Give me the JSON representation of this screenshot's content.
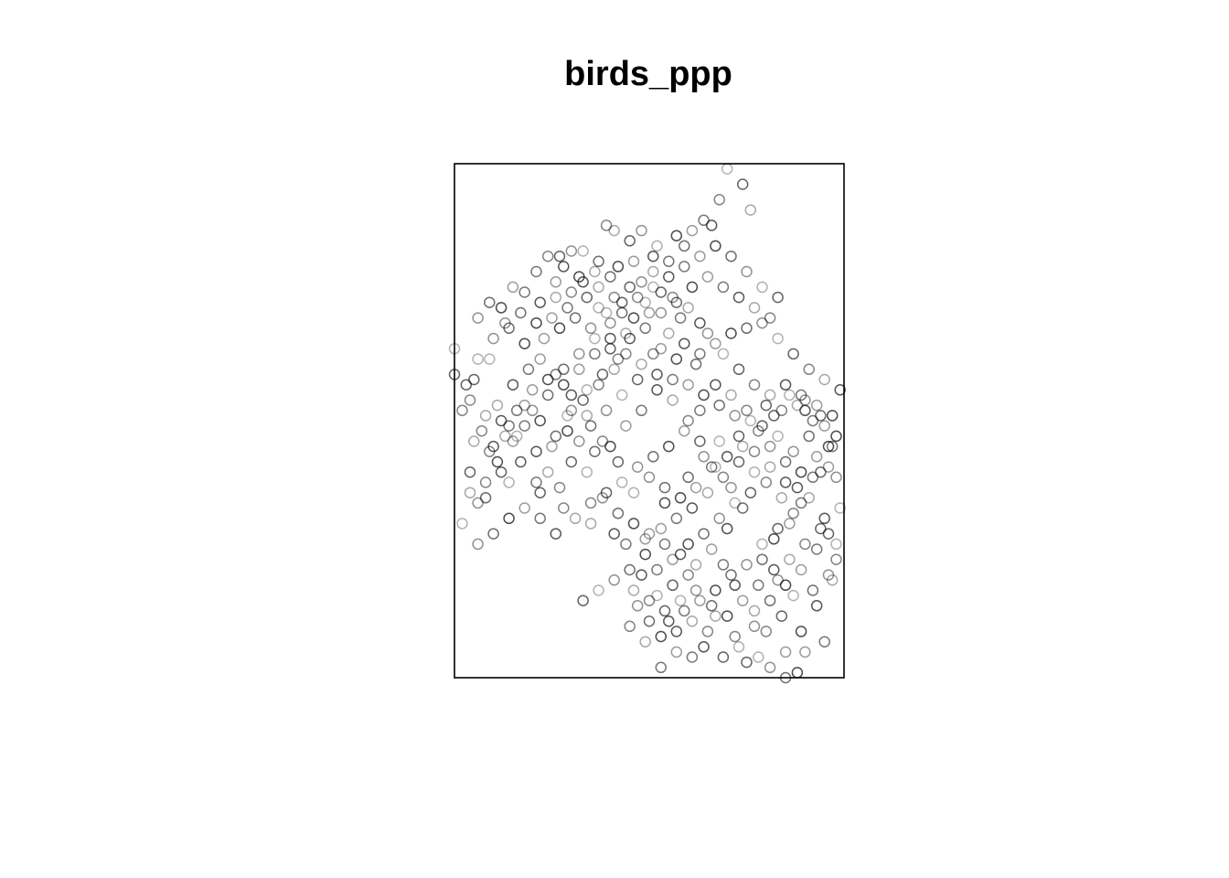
{
  "chart_data": {
    "type": "scatter",
    "title": "birds_ppp",
    "xlabel": "",
    "ylabel": "",
    "xlim": [
      0,
      100
    ],
    "ylim": [
      0,
      100
    ],
    "grid": false,
    "axes_shown": false,
    "marker": "open-circle",
    "marker_color": "#000000",
    "points": [
      [
        70,
        99
      ],
      [
        74,
        96
      ],
      [
        68,
        93
      ],
      [
        76,
        91
      ],
      [
        66,
        88
      ],
      [
        64,
        89
      ],
      [
        61,
        87
      ],
      [
        57,
        86
      ],
      [
        59,
        84
      ],
      [
        48,
        87
      ],
      [
        52,
        84
      ],
      [
        45,
        85
      ],
      [
        39,
        88
      ],
      [
        41,
        87
      ],
      [
        51,
        82
      ],
      [
        55,
        81
      ],
      [
        46,
        81
      ],
      [
        42,
        80
      ],
      [
        37,
        81
      ],
      [
        30,
        83
      ],
      [
        33,
        83
      ],
      [
        27,
        82
      ],
      [
        24,
        82
      ],
      [
        36,
        79
      ],
      [
        28,
        80
      ],
      [
        21,
        79
      ],
      [
        26,
        77
      ],
      [
        32,
        78
      ],
      [
        40,
        78
      ],
      [
        48,
        77
      ],
      [
        51,
        76
      ],
      [
        53,
        75
      ],
      [
        56,
        74
      ],
      [
        60,
        72
      ],
      [
        63,
        69
      ],
      [
        58,
        70
      ],
      [
        50,
        71
      ],
      [
        46,
        70
      ],
      [
        43,
        71
      ],
      [
        40,
        69
      ],
      [
        37,
        72
      ],
      [
        34,
        74
      ],
      [
        30,
        75
      ],
      [
        26,
        74
      ],
      [
        22,
        73
      ],
      [
        18,
        75
      ],
      [
        15,
        76
      ],
      [
        12,
        72
      ],
      [
        9,
        73
      ],
      [
        6,
        70
      ],
      [
        0,
        64
      ],
      [
        0,
        59
      ],
      [
        4,
        54
      ],
      [
        8,
        51
      ],
      [
        12,
        50
      ],
      [
        16,
        52
      ],
      [
        20,
        56
      ],
      [
        24,
        58
      ],
      [
        28,
        60
      ],
      [
        32,
        63
      ],
      [
        36,
        66
      ],
      [
        40,
        64
      ],
      [
        44,
        63
      ],
      [
        48,
        61
      ],
      [
        52,
        59
      ],
      [
        56,
        58
      ],
      [
        60,
        57
      ],
      [
        64,
        55
      ],
      [
        68,
        53
      ],
      [
        72,
        51
      ],
      [
        76,
        50
      ],
      [
        80,
        53
      ],
      [
        84,
        52
      ],
      [
        88,
        53
      ],
      [
        90,
        52
      ],
      [
        92,
        50
      ],
      [
        95,
        49
      ],
      [
        96,
        45
      ],
      [
        94,
        40
      ],
      [
        98,
        39
      ],
      [
        99,
        33
      ],
      [
        96,
        28
      ],
      [
        98,
        23
      ],
      [
        97,
        19
      ],
      [
        93,
        14
      ],
      [
        95,
        7
      ],
      [
        90,
        5
      ],
      [
        88,
        1
      ],
      [
        85,
        0
      ],
      [
        81,
        2
      ],
      [
        78,
        4
      ],
      [
        75,
        3
      ],
      [
        72,
        8
      ],
      [
        67,
        12
      ],
      [
        64,
        6
      ],
      [
        61,
        4
      ],
      [
        57,
        5
      ],
      [
        53,
        8
      ],
      [
        50,
        11
      ],
      [
        47,
        14
      ],
      [
        52,
        16
      ],
      [
        56,
        18
      ],
      [
        60,
        20
      ],
      [
        62,
        22
      ],
      [
        58,
        24
      ],
      [
        54,
        26
      ],
      [
        50,
        28
      ],
      [
        46,
        30
      ],
      [
        42,
        32
      ],
      [
        38,
        35
      ],
      [
        34,
        40
      ],
      [
        30,
        42
      ],
      [
        27,
        37
      ],
      [
        24,
        40
      ],
      [
        21,
        44
      ],
      [
        18,
        49
      ],
      [
        15,
        46
      ],
      [
        11,
        42
      ],
      [
        8,
        35
      ],
      [
        6,
        34
      ],
      [
        14,
        38
      ],
      [
        22,
        36
      ],
      [
        28,
        33
      ],
      [
        35,
        30
      ],
      [
        41,
        28
      ],
      [
        44,
        26
      ],
      [
        49,
        27
      ],
      [
        54,
        34
      ],
      [
        60,
        39
      ],
      [
        64,
        43
      ],
      [
        68,
        46
      ],
      [
        73,
        47
      ],
      [
        77,
        44
      ],
      [
        81,
        41
      ],
      [
        85,
        38
      ],
      [
        89,
        34
      ],
      [
        86,
        30
      ],
      [
        82,
        27
      ],
      [
        79,
        23
      ],
      [
        83,
        19
      ],
      [
        87,
        16
      ],
      [
        84,
        12
      ],
      [
        80,
        9
      ],
      [
        77,
        13
      ],
      [
        72,
        18
      ],
      [
        69,
        22
      ],
      [
        66,
        25
      ],
      [
        70,
        29
      ],
      [
        74,
        33
      ],
      [
        71,
        37
      ],
      [
        67,
        41
      ],
      [
        63,
        46
      ],
      [
        60,
        50
      ],
      [
        56,
        54
      ],
      [
        52,
        56
      ],
      [
        48,
        52
      ],
      [
        44,
        49
      ],
      [
        40,
        45
      ],
      [
        36,
        44
      ],
      [
        32,
        46
      ],
      [
        29,
        51
      ],
      [
        33,
        54
      ],
      [
        37,
        57
      ],
      [
        41,
        60
      ],
      [
        45,
        66
      ],
      [
        49,
        68
      ],
      [
        53,
        64
      ],
      [
        57,
        62
      ],
      [
        62,
        61
      ],
      [
        65,
        67
      ],
      [
        69,
        63
      ],
      [
        73,
        60
      ],
      [
        77,
        57
      ],
      [
        81,
        55
      ],
      [
        85,
        57
      ],
      [
        89,
        55
      ],
      [
        93,
        53
      ],
      [
        97,
        51
      ],
      [
        91,
        47
      ],
      [
        87,
        44
      ],
      [
        83,
        47
      ],
      [
        79,
        49
      ],
      [
        75,
        52
      ],
      [
        71,
        55
      ],
      [
        67,
        57
      ],
      [
        63,
        52
      ],
      [
        59,
        48
      ],
      [
        55,
        45
      ],
      [
        51,
        43
      ],
      [
        47,
        41
      ],
      [
        43,
        38
      ],
      [
        39,
        36
      ],
      [
        35,
        34
      ],
      [
        31,
        31
      ],
      [
        26,
        28
      ],
      [
        22,
        31
      ],
      [
        18,
        33
      ],
      [
        14,
        31
      ],
      [
        10,
        28
      ],
      [
        6,
        26
      ],
      [
        2,
        30
      ],
      [
        4,
        40
      ],
      [
        9,
        44
      ],
      [
        13,
        47
      ],
      [
        17,
        42
      ],
      [
        21,
        38
      ],
      [
        25,
        45
      ],
      [
        29,
        48
      ],
      [
        35,
        49
      ],
      [
        39,
        52
      ],
      [
        43,
        55
      ],
      [
        47,
        58
      ],
      [
        51,
        63
      ],
      [
        55,
        67
      ],
      [
        59,
        65
      ],
      [
        63,
        63
      ],
      [
        67,
        65
      ],
      [
        71,
        67
      ],
      [
        75,
        68
      ],
      [
        79,
        69
      ],
      [
        83,
        66
      ],
      [
        87,
        63
      ],
      [
        91,
        60
      ],
      [
        95,
        58
      ],
      [
        99,
        56
      ],
      [
        97,
        45
      ],
      [
        93,
        43
      ],
      [
        89,
        40
      ],
      [
        85,
        42
      ],
      [
        81,
        45
      ],
      [
        77,
        40
      ],
      [
        73,
        42
      ],
      [
        69,
        39
      ],
      [
        65,
        36
      ],
      [
        61,
        33
      ],
      [
        57,
        31
      ],
      [
        53,
        29
      ],
      [
        49,
        24
      ],
      [
        45,
        21
      ],
      [
        41,
        19
      ],
      [
        37,
        17
      ],
      [
        33,
        15
      ],
      [
        45,
        10
      ],
      [
        49,
        7
      ],
      [
        55,
        11
      ],
      [
        59,
        13
      ],
      [
        63,
        15
      ],
      [
        67,
        17
      ],
      [
        71,
        20
      ],
      [
        75,
        22
      ],
      [
        79,
        26
      ],
      [
        83,
        29
      ],
      [
        87,
        32
      ],
      [
        91,
        35
      ],
      [
        95,
        31
      ],
      [
        93,
        25
      ],
      [
        89,
        21
      ],
      [
        85,
        18
      ],
      [
        81,
        15
      ],
      [
        77,
        10
      ],
      [
        73,
        6
      ],
      [
        69,
        4
      ],
      [
        65,
        9
      ],
      [
        61,
        11
      ],
      [
        57,
        9
      ],
      [
        53,
        2
      ],
      [
        85,
        5
      ],
      [
        89,
        9
      ],
      [
        92,
        17
      ],
      [
        96,
        20
      ],
      [
        98,
        26
      ],
      [
        94,
        29
      ],
      [
        90,
        26
      ],
      [
        86,
        23
      ],
      [
        82,
        21
      ],
      [
        78,
        18
      ],
      [
        74,
        15
      ],
      [
        70,
        12
      ],
      [
        66,
        14
      ],
      [
        62,
        17
      ],
      [
        58,
        15
      ],
      [
        54,
        13
      ],
      [
        50,
        15
      ],
      [
        46,
        17
      ],
      [
        48,
        20
      ],
      [
        52,
        21
      ],
      [
        56,
        23
      ],
      [
        60,
        26
      ],
      [
        64,
        28
      ],
      [
        68,
        31
      ],
      [
        72,
        34
      ],
      [
        76,
        36
      ],
      [
        80,
        38
      ],
      [
        84,
        35
      ],
      [
        88,
        37
      ],
      [
        92,
        39
      ],
      [
        96,
        41
      ],
      [
        98,
        47
      ],
      [
        94,
        51
      ],
      [
        90,
        54
      ],
      [
        86,
        55
      ],
      [
        82,
        51
      ],
      [
        78,
        48
      ],
      [
        74,
        45
      ],
      [
        70,
        43
      ],
      [
        66,
        41
      ],
      [
        62,
        37
      ],
      [
        58,
        35
      ],
      [
        54,
        37
      ],
      [
        50,
        39
      ],
      [
        46,
        36
      ],
      [
        42,
        42
      ],
      [
        38,
        46
      ],
      [
        34,
        51
      ],
      [
        30,
        55
      ],
      [
        26,
        59
      ],
      [
        22,
        62
      ],
      [
        18,
        65
      ],
      [
        14,
        68
      ],
      [
        10,
        66
      ],
      [
        6,
        62
      ],
      [
        3,
        57
      ],
      [
        7,
        48
      ],
      [
        11,
        53
      ],
      [
        15,
        57
      ],
      [
        19,
        60
      ],
      [
        23,
        66
      ],
      [
        27,
        68
      ],
      [
        31,
        70
      ],
      [
        35,
        68
      ],
      [
        39,
        71
      ],
      [
        43,
        73
      ],
      [
        47,
        74
      ],
      [
        51,
        79
      ],
      [
        55,
        78
      ],
      [
        59,
        80
      ],
      [
        63,
        82
      ],
      [
        67,
        84
      ],
      [
        71,
        82
      ],
      [
        75,
        79
      ],
      [
        79,
        76
      ],
      [
        83,
        74
      ],
      [
        81,
        70
      ],
      [
        77,
        72
      ],
      [
        73,
        74
      ],
      [
        69,
        76
      ],
      [
        65,
        78
      ],
      [
        61,
        76
      ],
      [
        57,
        73
      ],
      [
        53,
        71
      ],
      [
        49,
        73
      ],
      [
        45,
        76
      ],
      [
        41,
        74
      ],
      [
        37,
        76
      ],
      [
        33,
        77
      ],
      [
        29,
        72
      ],
      [
        25,
        70
      ],
      [
        21,
        69
      ],
      [
        17,
        71
      ],
      [
        13,
        69
      ],
      [
        9,
        62
      ],
      [
        5,
        58
      ],
      [
        2,
        52
      ],
      [
        5,
        46
      ],
      [
        10,
        45
      ],
      [
        14,
        49
      ],
      [
        18,
        53
      ],
      [
        22,
        50
      ],
      [
        26,
        47
      ],
      [
        30,
        52
      ],
      [
        34,
        56
      ],
      [
        38,
        59
      ],
      [
        42,
        62
      ],
      [
        44,
        67
      ],
      [
        40,
        66
      ],
      [
        36,
        63
      ],
      [
        32,
        60
      ],
      [
        28,
        57
      ],
      [
        24,
        55
      ],
      [
        20,
        52
      ],
      [
        16,
        47
      ],
      [
        12,
        40
      ],
      [
        8,
        38
      ],
      [
        4,
        36
      ]
    ]
  }
}
